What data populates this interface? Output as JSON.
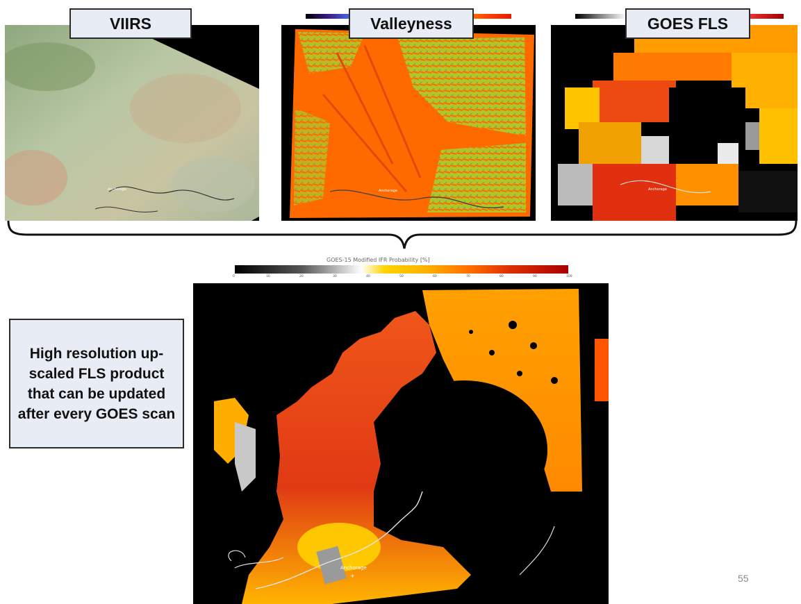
{
  "labels": {
    "viirs": "VIIRS",
    "valleyness": "Valleyness",
    "goes_fls": "GOES FLS"
  },
  "description_box": "High resolution up-scaled FLS product that can be updated after every GOES scan",
  "colorbar": {
    "title": "GOES-15 Modified IFR Probability [%]",
    "ticks": [
      "0",
      "10",
      "20",
      "30",
      "40",
      "50",
      "60",
      "70",
      "80",
      "90",
      "100"
    ]
  },
  "map_city_label": "Anchorage",
  "slide_number": "55",
  "colors": {
    "label_bg": "#e8ecf4",
    "fls_orange": "#ff6a00",
    "fls_red": "#d42a12",
    "fls_yellow": "#ffc400"
  }
}
